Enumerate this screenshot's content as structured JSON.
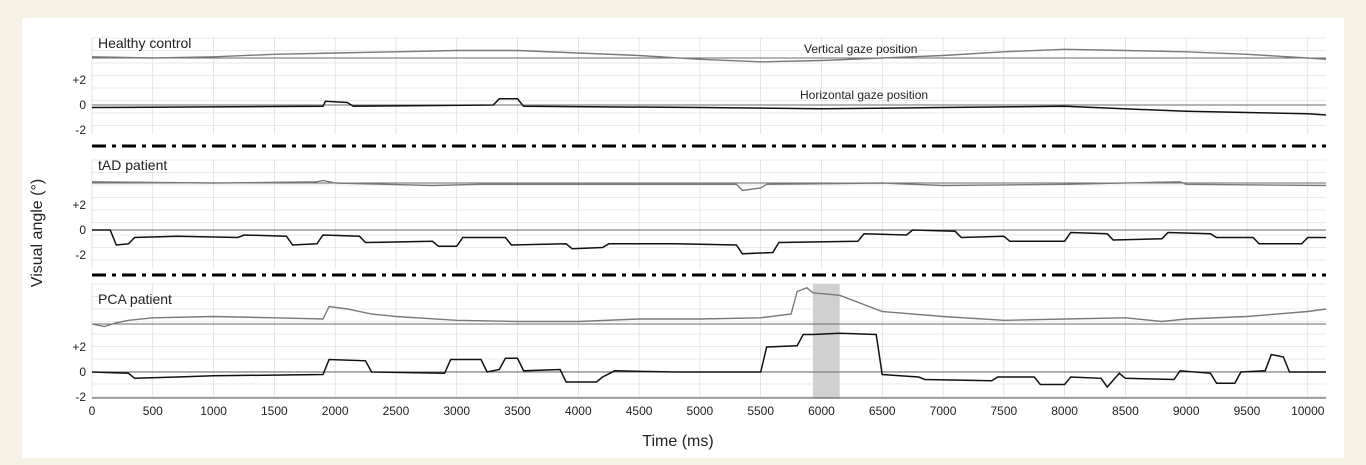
{
  "chart_data": {
    "type": "line",
    "xlabel": "Time (ms)",
    "ylabel": "Visual angle (°)",
    "xlim": [
      0,
      10150
    ],
    "x_ticks": [
      "0",
      "500",
      "1000",
      "1500",
      "2000",
      "2500",
      "3000",
      "3500",
      "4000",
      "4500",
      "5000",
      "5500",
      "6000",
      "6500",
      "7000",
      "7500",
      "8000",
      "8500",
      "9000",
      "9500",
      "10000"
    ],
    "y_ticks": [
      "+2",
      "0",
      "-2"
    ],
    "grid": true,
    "annotations": {
      "vertical": "Vertical gaze position",
      "horizontal": "Horizontal gaze position"
    },
    "shaded_region": [
      5930,
      6150
    ],
    "panels": [
      {
        "label": "Healthy control",
        "vertical": [
          [
            0,
            0.1
          ],
          [
            500,
            0.0
          ],
          [
            1000,
            0.1
          ],
          [
            1500,
            0.3
          ],
          [
            2000,
            0.4
          ],
          [
            2500,
            0.5
          ],
          [
            3000,
            0.6
          ],
          [
            3500,
            0.6
          ],
          [
            4000,
            0.4
          ],
          [
            4500,
            0.2
          ],
          [
            5000,
            -0.1
          ],
          [
            5500,
            -0.3
          ],
          [
            6000,
            -0.2
          ],
          [
            6500,
            0.0
          ],
          [
            7000,
            0.2
          ],
          [
            7500,
            0.5
          ],
          [
            8000,
            0.7
          ],
          [
            8500,
            0.6
          ],
          [
            9000,
            0.5
          ],
          [
            9500,
            0.3
          ],
          [
            10000,
            0.0
          ],
          [
            10150,
            -0.1
          ]
        ],
        "horizontal": [
          [
            0,
            -0.2
          ],
          [
            1900,
            -0.1
          ],
          [
            1920,
            0.3
          ],
          [
            2100,
            0.2
          ],
          [
            2150,
            -0.1
          ],
          [
            3300,
            0.0
          ],
          [
            3350,
            0.5
          ],
          [
            3500,
            0.5
          ],
          [
            3550,
            -0.1
          ],
          [
            5000,
            -0.2
          ],
          [
            6000,
            -0.3
          ],
          [
            7000,
            -0.2
          ],
          [
            8000,
            -0.1
          ],
          [
            9000,
            -0.5
          ],
          [
            10000,
            -0.7
          ],
          [
            10150,
            -0.8
          ]
        ]
      },
      {
        "label": "tAD patient",
        "vertical": [
          [
            0,
            0.1
          ],
          [
            1000,
            0.0
          ],
          [
            1850,
            0.1
          ],
          [
            1900,
            0.2
          ],
          [
            2000,
            0.0
          ],
          [
            2800,
            -0.2
          ],
          [
            3200,
            -0.1
          ],
          [
            4000,
            -0.1
          ],
          [
            5300,
            -0.1
          ],
          [
            5350,
            -0.6
          ],
          [
            5500,
            -0.4
          ],
          [
            5550,
            -0.1
          ],
          [
            6500,
            0.0
          ],
          [
            7000,
            -0.2
          ],
          [
            8000,
            -0.1
          ],
          [
            8950,
            0.1
          ],
          [
            9000,
            -0.1
          ],
          [
            10150,
            -0.2
          ]
        ],
        "horizontal": [
          [
            0,
            0.0
          ],
          [
            150,
            0.0
          ],
          [
            200,
            -1.2
          ],
          [
            300,
            -1.1
          ],
          [
            350,
            -0.6
          ],
          [
            700,
            -0.5
          ],
          [
            1200,
            -0.6
          ],
          [
            1250,
            -0.4
          ],
          [
            1600,
            -0.5
          ],
          [
            1650,
            -1.2
          ],
          [
            1850,
            -1.1
          ],
          [
            1900,
            -0.4
          ],
          [
            2200,
            -0.5
          ],
          [
            2250,
            -1.0
          ],
          [
            2800,
            -0.9
          ],
          [
            2850,
            -1.3
          ],
          [
            3000,
            -1.3
          ],
          [
            3050,
            -0.6
          ],
          [
            3400,
            -0.6
          ],
          [
            3450,
            -1.2
          ],
          [
            3900,
            -1.1
          ],
          [
            3950,
            -1.5
          ],
          [
            4200,
            -1.4
          ],
          [
            4250,
            -1.1
          ],
          [
            4800,
            -1.1
          ],
          [
            5300,
            -1.2
          ],
          [
            5350,
            -1.9
          ],
          [
            5600,
            -1.8
          ],
          [
            5650,
            -1.0
          ],
          [
            6300,
            -0.9
          ],
          [
            6350,
            -0.3
          ],
          [
            6700,
            -0.4
          ],
          [
            6750,
            0.0
          ],
          [
            7100,
            -0.1
          ],
          [
            7150,
            -0.6
          ],
          [
            7500,
            -0.5
          ],
          [
            7550,
            -0.9
          ],
          [
            8000,
            -0.9
          ],
          [
            8050,
            -0.2
          ],
          [
            8350,
            -0.3
          ],
          [
            8400,
            -0.8
          ],
          [
            8800,
            -0.7
          ],
          [
            8850,
            -0.2
          ],
          [
            9200,
            -0.3
          ],
          [
            9250,
            -0.6
          ],
          [
            9550,
            -0.6
          ],
          [
            9600,
            -1.1
          ],
          [
            9950,
            -1.1
          ],
          [
            10000,
            -0.6
          ],
          [
            10150,
            -0.6
          ]
        ]
      },
      {
        "label": "PCA patient",
        "vertical": [
          [
            0,
            0.0
          ],
          [
            100,
            -0.2
          ],
          [
            200,
            0.1
          ],
          [
            300,
            0.3
          ],
          [
            500,
            0.5
          ],
          [
            1000,
            0.6
          ],
          [
            1500,
            0.5
          ],
          [
            1900,
            0.4
          ],
          [
            1950,
            1.4
          ],
          [
            2100,
            1.2
          ],
          [
            2300,
            0.8
          ],
          [
            2500,
            0.6
          ],
          [
            3000,
            0.3
          ],
          [
            3500,
            0.2
          ],
          [
            4000,
            0.2
          ],
          [
            4500,
            0.4
          ],
          [
            5000,
            0.4
          ],
          [
            5500,
            0.5
          ],
          [
            5750,
            0.8
          ],
          [
            5800,
            2.6
          ],
          [
            5880,
            2.9
          ],
          [
            5930,
            2.5
          ],
          [
            6150,
            2.3
          ],
          [
            6500,
            1.0
          ],
          [
            7000,
            0.6
          ],
          [
            7500,
            0.3
          ],
          [
            8000,
            0.4
          ],
          [
            8500,
            0.5
          ],
          [
            8800,
            0.2
          ],
          [
            9000,
            0.4
          ],
          [
            9500,
            0.6
          ],
          [
            10000,
            1.0
          ],
          [
            10150,
            1.2
          ]
        ],
        "horizontal": [
          [
            0,
            0.0
          ],
          [
            300,
            -0.1
          ],
          [
            350,
            -0.5
          ],
          [
            700,
            -0.4
          ],
          [
            1000,
            -0.3
          ],
          [
            1900,
            -0.2
          ],
          [
            1950,
            1.0
          ],
          [
            2250,
            0.9
          ],
          [
            2300,
            0.0
          ],
          [
            2900,
            -0.1
          ],
          [
            2950,
            1.0
          ],
          [
            3200,
            1.0
          ],
          [
            3250,
            0.0
          ],
          [
            3350,
            0.2
          ],
          [
            3400,
            1.1
          ],
          [
            3500,
            1.1
          ],
          [
            3550,
            0.1
          ],
          [
            3850,
            0.2
          ],
          [
            3900,
            -0.8
          ],
          [
            4150,
            -0.8
          ],
          [
            4200,
            -0.4
          ],
          [
            4300,
            0.1
          ],
          [
            4800,
            0.0
          ],
          [
            5300,
            0.0
          ],
          [
            5500,
            0.0
          ],
          [
            5550,
            2.0
          ],
          [
            5800,
            2.1
          ],
          [
            5850,
            3.0
          ],
          [
            5930,
            3.0
          ],
          [
            6150,
            3.1
          ],
          [
            6450,
            3.0
          ],
          [
            6500,
            -0.2
          ],
          [
            6800,
            -0.4
          ],
          [
            6850,
            -0.6
          ],
          [
            7400,
            -0.7
          ],
          [
            7450,
            -0.4
          ],
          [
            7750,
            -0.4
          ],
          [
            7800,
            -1.0
          ],
          [
            8000,
            -1.0
          ],
          [
            8050,
            -0.4
          ],
          [
            8300,
            -0.5
          ],
          [
            8350,
            -1.2
          ],
          [
            8450,
            -0.1
          ],
          [
            8500,
            -0.5
          ],
          [
            8900,
            -0.6
          ],
          [
            8950,
            0.1
          ],
          [
            9200,
            -0.1
          ],
          [
            9250,
            -0.9
          ],
          [
            9400,
            -0.9
          ],
          [
            9450,
            0.0
          ],
          [
            9650,
            0.1
          ],
          [
            9700,
            1.4
          ],
          [
            9800,
            1.2
          ],
          [
            9850,
            0.0
          ],
          [
            10150,
            0.0
          ]
        ]
      }
    ]
  },
  "colors": {
    "vertical": "#7a7a7a",
    "horizontal": "#111111",
    "grid": "#d6d6d6",
    "shade": "#d0d0d0",
    "background": "#f6f3e6"
  }
}
